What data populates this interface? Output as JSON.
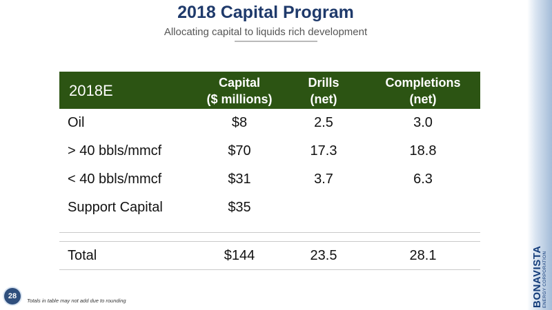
{
  "title": "2018 Capital Program",
  "subtitle": "Allocating capital to liquids rich development",
  "table": {
    "header": {
      "label": "2018E",
      "capital_line1": "Capital",
      "capital_line2": "($ millions)",
      "drills_line1": "Drills",
      "drills_line2": "(net)",
      "completions_line1": "Completions",
      "completions_line2": "(net)"
    },
    "rows": [
      {
        "label": "Oil",
        "capital": "$8",
        "drills": "2.5",
        "completions": "3.0"
      },
      {
        "label": "> 40 bbls/mmcf",
        "capital": "$70",
        "drills": "17.3",
        "completions": "18.8"
      },
      {
        "label": "< 40 bbls/mmcf",
        "capital": "$31",
        "drills": "3.7",
        "completions": "6.3"
      },
      {
        "label": "Support Capital",
        "capital": "$35",
        "drills": "",
        "completions": ""
      }
    ],
    "total": {
      "label": "Total",
      "capital": "$144",
      "drills": "23.5",
      "completions": "28.1"
    }
  },
  "footnote": "Totals in table may not add due to rounding",
  "page_number": "28",
  "logo": {
    "name": "BONAVISTA",
    "tagline": "ENERGY CORPORATION"
  },
  "colors": {
    "header_bg": "#2c5413",
    "title": "#1f3a6b",
    "logo": "#143c7a"
  }
}
